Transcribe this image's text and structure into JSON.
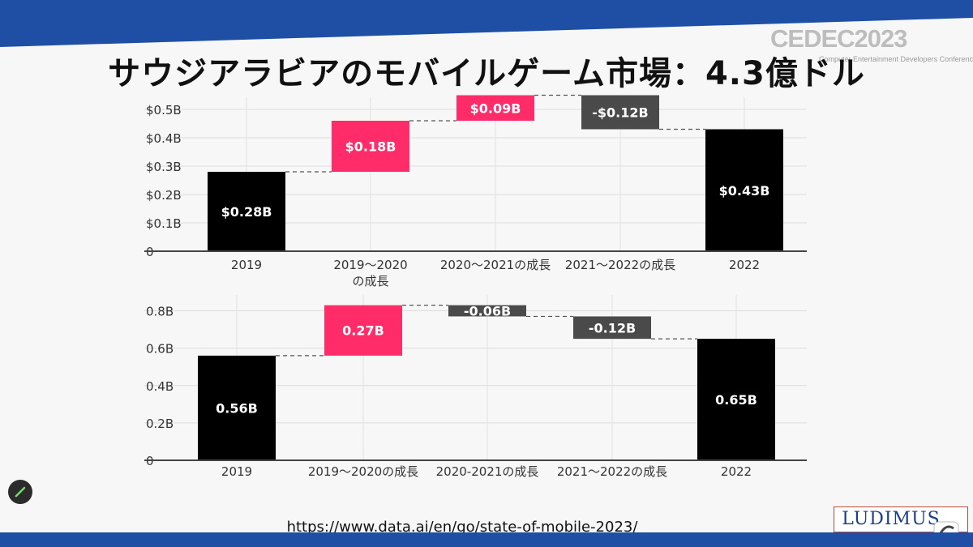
{
  "slide": {
    "title": "サウジアラビアのモバイルゲーム市場：4.3億ドル",
    "logo_text": "CEDEC2023",
    "logo_subtitle": "Computer Entertainment Developers Conference",
    "source_url": "https://www.data.ai/en/go/state-of-mobile-2023/",
    "publisher_logo": "LUDIMUS",
    "colors": {
      "band": "#1e4fa4",
      "increase": "#ff2c69",
      "decrease": "#4a4a4a",
      "total": "#000000"
    }
  },
  "chart_data": [
    {
      "type": "bar",
      "subtype": "waterfall",
      "categories": [
        "2019",
        "2019〜2020の成長",
        "2020〜2021の成長",
        "2021〜2022の成長",
        "2022"
      ],
      "category_labels": [
        [
          "2019"
        ],
        [
          "2019〜2020",
          "の成長"
        ],
        [
          "2020〜2021の成長"
        ],
        [
          "2021〜2022の成長"
        ],
        [
          "2022"
        ]
      ],
      "values": [
        0.28,
        0.18,
        0.09,
        -0.12,
        0.43
      ],
      "kinds": [
        "total",
        "increase",
        "increase",
        "decrease",
        "total"
      ],
      "data_labels": [
        "$0.28B",
        "$0.18B",
        "$0.09B",
        "-$0.12B",
        "$0.43B"
      ],
      "yticks": [
        0,
        0.1,
        0.2,
        0.3,
        0.4,
        0.5
      ],
      "ytick_labels": [
        "0",
        "$0.1B",
        "$0.2B",
        "$0.3B",
        "$0.4B",
        "$0.5B"
      ],
      "ylim": [
        0,
        0.52
      ],
      "grid": true
    },
    {
      "type": "bar",
      "subtype": "waterfall",
      "categories": [
        "2019",
        "2019〜2020の成長",
        "2020-2021の成長",
        "2021〜2022の成長",
        "2022"
      ],
      "category_labels": [
        [
          "2019"
        ],
        [
          "2019〜2020の成長"
        ],
        [
          "2020-2021の成長"
        ],
        [
          "2021〜2022の成長"
        ],
        [
          "2022"
        ]
      ],
      "values": [
        0.56,
        0.27,
        -0.06,
        -0.12,
        0.65
      ],
      "kinds": [
        "total",
        "increase",
        "decrease",
        "decrease",
        "total"
      ],
      "data_labels": [
        "0.56B",
        "0.27B",
        "-0.06B",
        "-0.12B",
        "0.65B"
      ],
      "yticks": [
        0,
        0.2,
        0.4,
        0.6,
        0.8
      ],
      "ytick_labels": [
        "0",
        "0.2B",
        "0.4B",
        "0.6B",
        "0.8B"
      ],
      "ylim": [
        0,
        0.85
      ],
      "grid": true
    }
  ]
}
